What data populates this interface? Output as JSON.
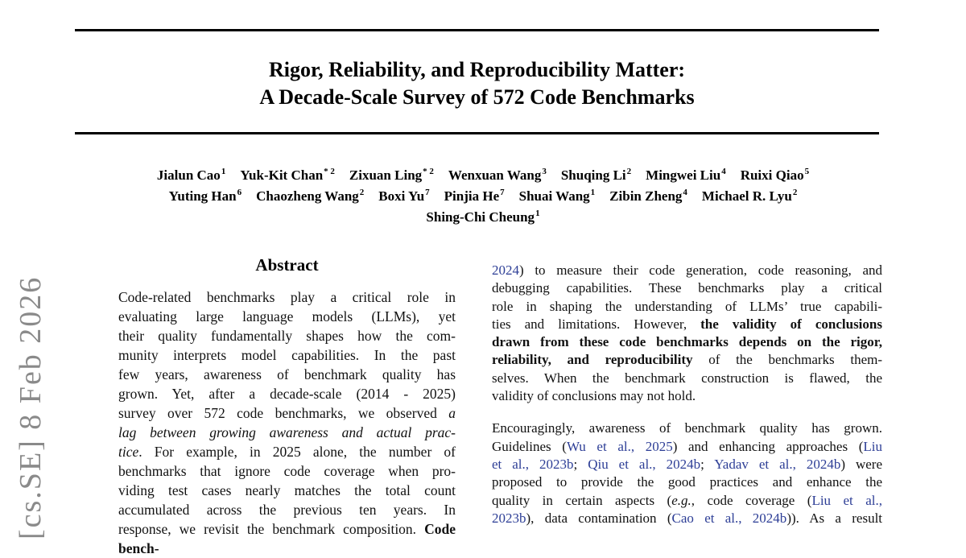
{
  "colors": {
    "link": "#2d3e96",
    "stamp": "#8a8a8a",
    "rule": "#000000"
  },
  "arxiv_stamp": {
    "text": "[cs.SE]  8 Feb 2026"
  },
  "title": {
    "lines": [
      "Rigor, Reliability, and Reproducibility Matter:",
      "A Decade-Scale Survey of 572 Code Benchmarks"
    ]
  },
  "authors": {
    "lines": [
      [
        {
          "name": "Jialun Cao",
          "sup": "1"
        },
        {
          "name": "Yuk-Kit Chan",
          "sup": "* 2"
        },
        {
          "name": "Zixuan Ling",
          "sup": "* 2"
        },
        {
          "name": "Wenxuan Wang",
          "sup": "3"
        },
        {
          "name": "Shuqing Li",
          "sup": "2"
        },
        {
          "name": "Mingwei Liu",
          "sup": "4"
        },
        {
          "name": "Ruixi Qiao",
          "sup": "5"
        }
      ],
      [
        {
          "name": "Yuting Han",
          "sup": "6"
        },
        {
          "name": "Chaozheng Wang",
          "sup": "2"
        },
        {
          "name": "Boxi Yu",
          "sup": "7"
        },
        {
          "name": "Pinjia He",
          "sup": "7"
        },
        {
          "name": "Shuai Wang",
          "sup": "1"
        },
        {
          "name": "Zibin Zheng",
          "sup": "4"
        },
        {
          "name": "Michael R. Lyu",
          "sup": "2"
        }
      ],
      [
        {
          "name": "Shing-Chi Cheung",
          "sup": "1"
        }
      ]
    ]
  },
  "abstract": {
    "heading": "Abstract",
    "lines": [
      {
        "seg": [
          {
            "t": "Code-related benchmarks play a critical role in"
          }
        ]
      },
      {
        "seg": [
          {
            "t": "evaluating large language models (LLMs), yet"
          }
        ]
      },
      {
        "seg": [
          {
            "t": "their quality fundamentally shapes how the com-"
          }
        ]
      },
      {
        "seg": [
          {
            "t": "munity interprets model capabilities. In the past"
          }
        ]
      },
      {
        "seg": [
          {
            "t": "few years, awareness of benchmark quality has"
          }
        ]
      },
      {
        "seg": [
          {
            "t": "grown. Yet, after a decade-scale (2014 - 2025)"
          }
        ]
      },
      {
        "seg": [
          {
            "t": "survey over 572 code benchmarks, we observed "
          },
          {
            "t": "a",
            "style": "italic"
          }
        ]
      },
      {
        "seg": [
          {
            "t": "lag between growing awareness and actual prac-",
            "style": "italic"
          }
        ]
      },
      {
        "seg": [
          {
            "t": "tice",
            "style": "italic"
          },
          {
            "t": ". For example, in 2025 alone, the number of"
          }
        ]
      },
      {
        "seg": [
          {
            "t": "benchmarks that ignore code coverage when pro-"
          }
        ]
      },
      {
        "seg": [
          {
            "t": "viding test cases nearly matches the total count"
          }
        ]
      },
      {
        "seg": [
          {
            "t": "accumulated across the previous ten years. In"
          }
        ]
      },
      {
        "seg": [
          {
            "t": "response, we revisit the benchmark composition. "
          },
          {
            "t": "Code bench-",
            "style": "bold"
          }
        ]
      }
    ]
  },
  "right_column": {
    "paragraphs": [
      {
        "lines": [
          {
            "seg": [
              {
                "t": "2024",
                "style": "link"
              },
              {
                "t": ") to measure their code generation, code reasoning, and"
              }
            ]
          },
          {
            "seg": [
              {
                "t": "debugging capabilities. These benchmarks play a critical"
              }
            ]
          },
          {
            "seg": [
              {
                "t": "role in shaping the understanding of LLMs’ true capabili-"
              }
            ]
          },
          {
            "seg": [
              {
                "t": "ties and limitations. However, "
              },
              {
                "t": "the validity of conclusions",
                "style": "bold"
              }
            ]
          },
          {
            "seg": [
              {
                "t": "drawn from these code benchmarks depends on the rigor,",
                "style": "bold"
              }
            ]
          },
          {
            "seg": [
              {
                "t": "reliability, and reproducibility",
                "style": "bold"
              },
              {
                "t": " of the benchmarks them-"
              }
            ]
          },
          {
            "seg": [
              {
                "t": "selves. When the benchmark construction is flawed, the"
              }
            ]
          },
          {
            "just": false,
            "seg": [
              {
                "t": "validity of conclusions may not hold."
              }
            ]
          }
        ]
      },
      {
        "lines": [
          {
            "seg": [
              {
                "t": "Encouragingly, awareness of benchmark quality has grown."
              }
            ]
          },
          {
            "seg": [
              {
                "t": "Guidelines ("
              },
              {
                "t": "Wu et al., 2025",
                "style": "link"
              },
              {
                "t": ") and enhancing approaches ("
              },
              {
                "t": "Liu",
                "style": "link"
              }
            ]
          },
          {
            "seg": [
              {
                "t": "et al., 2023b",
                "style": "link"
              },
              {
                "t": "; "
              },
              {
                "t": "Qiu et al., 2024b",
                "style": "link"
              },
              {
                "t": "; "
              },
              {
                "t": "Yadav et al., 2024b",
                "style": "link"
              },
              {
                "t": ") were"
              }
            ]
          },
          {
            "seg": [
              {
                "t": "proposed to provide the good practices and enhance the"
              }
            ]
          },
          {
            "seg": [
              {
                "t": "quality in certain aspects ("
              },
              {
                "t": "e.g.",
                "style": "italic"
              },
              {
                "t": ", code coverage ("
              },
              {
                "t": "Liu et al.,",
                "style": "link"
              }
            ]
          },
          {
            "seg": [
              {
                "t": "2023b",
                "style": "link"
              },
              {
                "t": "), data contamination ("
              },
              {
                "t": "Cao et al., 2024b",
                "style": "link"
              },
              {
                "t": ")). As a result"
              }
            ]
          }
        ]
      }
    ]
  }
}
